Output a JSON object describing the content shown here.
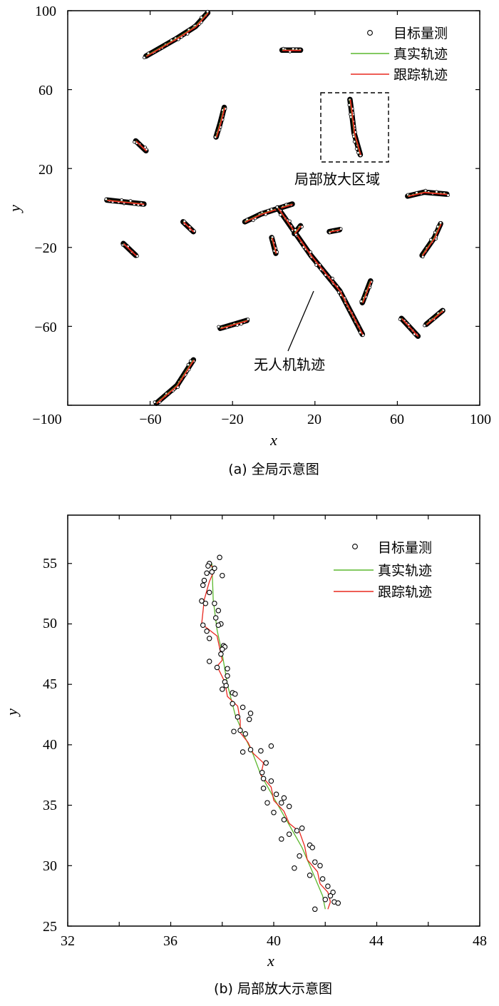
{
  "chart_data": [
    {
      "type": "scatter",
      "xlabel": "x",
      "ylabel": "y",
      "caption": "(a) 全局示意图",
      "xlim": [
        -100,
        100
      ],
      "ylim": [
        -100,
        100
      ],
      "xticks": [
        "−100",
        "−60",
        "−20",
        "20",
        "60",
        "100"
      ],
      "yticks": [
        "100",
        "60",
        "20",
        "−20",
        "−60"
      ],
      "legend": {
        "position": "top-right",
        "items": [
          "目标量测",
          "真实轨迹",
          "跟踪轨迹"
        ]
      },
      "colors": {
        "measurement": "#000000",
        "true": "#5cb82e",
        "tracking": "#e8281f"
      },
      "annotations": [
        "局部放大区域",
        "无人机轨迹"
      ],
      "series": [
        {
          "points": [
            [
              -62,
              77
            ],
            [
              -47,
              86
            ],
            [
              -38,
              92
            ],
            [
              -32,
              99
            ]
          ]
        },
        {
          "points": [
            [
              4,
              80
            ],
            [
              13,
              80
            ]
          ]
        },
        {
          "points": [
            [
              -28,
              36
            ],
            [
              -26,
              43
            ],
            [
              -24,
              51
            ]
          ]
        },
        {
          "points": [
            [
              -67,
              34
            ],
            [
              -62,
              29
            ]
          ]
        },
        {
          "points": [
            [
              37,
              55
            ],
            [
              38,
              47
            ],
            [
              39,
              38
            ],
            [
              42,
              27
            ]
          ]
        },
        {
          "points": [
            [
              -81,
              4
            ],
            [
              -72,
              3
            ],
            [
              -63,
              2
            ]
          ]
        },
        {
          "points": [
            [
              -44,
              -7
            ],
            [
              -39,
              -12
            ]
          ]
        },
        {
          "points": [
            [
              -14,
              -7
            ],
            [
              -6,
              -3
            ],
            [
              9,
              2
            ]
          ]
        },
        {
          "points": [
            [
              2,
              0
            ],
            [
              18,
              -24
            ],
            [
              32,
              -42
            ],
            [
              43,
              -64
            ]
          ]
        },
        {
          "points": [
            [
              10,
              -13
            ],
            [
              13,
              -9
            ]
          ]
        },
        {
          "points": [
            [
              27,
              -12
            ],
            [
              32,
              -11
            ]
          ]
        },
        {
          "points": [
            [
              -1,
              -15
            ],
            [
              1,
              -23
            ]
          ]
        },
        {
          "points": [
            [
              -73,
              -18
            ],
            [
              -67,
              -24
            ]
          ]
        },
        {
          "points": [
            [
              43,
              -48
            ],
            [
              47,
              -37
            ]
          ]
        },
        {
          "points": [
            [
              65,
              6
            ],
            [
              73,
              8
            ],
            [
              84,
              7
            ]
          ]
        },
        {
          "points": [
            [
              72,
              -24
            ],
            [
              78,
              -15
            ],
            [
              81,
              -8
            ]
          ]
        },
        {
          "points": [
            [
              -26,
              -61
            ],
            [
              -13,
              -57
            ]
          ]
        },
        {
          "points": [
            [
              62,
              -56
            ],
            [
              70,
              -65
            ]
          ]
        },
        {
          "points": [
            [
              74,
              -59
            ],
            [
              82,
              -52
            ]
          ]
        },
        {
          "points": [
            [
              -57,
              -99
            ],
            [
              -47,
              -90
            ],
            [
              -39,
              -77
            ]
          ]
        }
      ]
    },
    {
      "type": "line",
      "xlabel": "x",
      "ylabel": "y",
      "caption": "(b) 局部放大示意图",
      "xlim": [
        32,
        48
      ],
      "ylim": [
        25,
        59
      ],
      "xticks": [
        "32",
        "36",
        "40",
        "44",
        "48"
      ],
      "yticks": [
        "25",
        "30",
        "35",
        "40",
        "45",
        "50",
        "55"
      ],
      "legend": {
        "position": "top-right",
        "items": [
          "目标量测",
          "真实轨迹",
          "跟踪轨迹"
        ]
      },
      "colors": {
        "measurement": "#000000",
        "true": "#5cb82e",
        "tracking": "#e8281f"
      },
      "true_track": [
        [
          37.6,
          55.0
        ],
        [
          37.65,
          52.0
        ],
        [
          37.8,
          49.5
        ],
        [
          38.0,
          47.5
        ],
        [
          38.2,
          45.0
        ],
        [
          38.5,
          42.5
        ],
        [
          38.8,
          41.0
        ],
        [
          39.2,
          39.2
        ],
        [
          39.5,
          37.5
        ],
        [
          39.9,
          36.0
        ],
        [
          40.3,
          34.5
        ],
        [
          40.7,
          33.0
        ],
        [
          41.1,
          31.5
        ],
        [
          41.4,
          30.0
        ],
        [
          41.7,
          28.5
        ],
        [
          41.9,
          27.5
        ],
        [
          42.0,
          26.4
        ]
      ],
      "tracking_track": [
        [
          37.5,
          55.0
        ],
        [
          37.7,
          54.5
        ],
        [
          37.5,
          53.5
        ],
        [
          37.3,
          52.0
        ],
        [
          37.2,
          50.0
        ],
        [
          37.8,
          49.0
        ],
        [
          37.9,
          48.0
        ],
        [
          38.0,
          47.0
        ],
        [
          37.8,
          46.5
        ],
        [
          38.1,
          45.2
        ],
        [
          38.2,
          44.0
        ],
        [
          38.6,
          43.2
        ],
        [
          38.7,
          42.0
        ],
        [
          38.7,
          41.0
        ],
        [
          39.0,
          40.2
        ],
        [
          39.2,
          39.3
        ],
        [
          39.6,
          38.5
        ],
        [
          39.5,
          37.5
        ],
        [
          39.9,
          36.5
        ],
        [
          40.0,
          35.4
        ],
        [
          40.4,
          34.5
        ],
        [
          40.6,
          33.5
        ],
        [
          41.0,
          32.8
        ],
        [
          41.2,
          31.6
        ],
        [
          41.3,
          30.5
        ],
        [
          41.7,
          29.5
        ],
        [
          41.8,
          28.5
        ],
        [
          42.1,
          27.8
        ],
        [
          42.2,
          27.0
        ],
        [
          42.1,
          26.4
        ]
      ],
      "measurements": [
        [
          37.9,
          55.5
        ],
        [
          37.5,
          55.0
        ],
        [
          37.45,
          54.8
        ],
        [
          37.7,
          54.6
        ],
        [
          37.6,
          54.3
        ],
        [
          37.4,
          54.2
        ],
        [
          38.0,
          54.0
        ],
        [
          37.3,
          53.6
        ],
        [
          37.25,
          53.2
        ],
        [
          37.5,
          52.6
        ],
        [
          37.2,
          51.9
        ],
        [
          37.35,
          51.7
        ],
        [
          37.7,
          51.7
        ],
        [
          37.85,
          51.1
        ],
        [
          37.75,
          50.5
        ],
        [
          37.25,
          49.9
        ],
        [
          37.95,
          50.0
        ],
        [
          37.85,
          49.9
        ],
        [
          37.4,
          49.4
        ],
        [
          37.5,
          48.8
        ],
        [
          38.05,
          48.2
        ],
        [
          38.1,
          48.1
        ],
        [
          38.0,
          47.9
        ],
        [
          37.95,
          47.5
        ],
        [
          37.5,
          46.9
        ],
        [
          38.2,
          46.3
        ],
        [
          37.8,
          46.4
        ],
        [
          38.2,
          45.7
        ],
        [
          38.1,
          45.2
        ],
        [
          38.15,
          44.9
        ],
        [
          38.4,
          44.3
        ],
        [
          38.5,
          44.2
        ],
        [
          38.0,
          44.6
        ],
        [
          38.4,
          43.4
        ],
        [
          38.8,
          43.1
        ],
        [
          39.1,
          42.6
        ],
        [
          38.6,
          42.3
        ],
        [
          39.05,
          42.1
        ],
        [
          38.7,
          41.2
        ],
        [
          38.45,
          41.1
        ],
        [
          38.9,
          40.9
        ],
        [
          39.9,
          39.9
        ],
        [
          39.5,
          39.5
        ],
        [
          38.8,
          39.4
        ],
        [
          39.1,
          39.6
        ],
        [
          39.7,
          38.5
        ],
        [
          39.55,
          37.7
        ],
        [
          39.6,
          37.2
        ],
        [
          39.9,
          37.0
        ],
        [
          39.6,
          36.4
        ],
        [
          40.1,
          35.9
        ],
        [
          40.4,
          35.6
        ],
        [
          40.3,
          35.2
        ],
        [
          39.75,
          35.2
        ],
        [
          40.6,
          34.9
        ],
        [
          40.0,
          34.4
        ],
        [
          40.4,
          33.8
        ],
        [
          41.1,
          33.1
        ],
        [
          40.9,
          32.9
        ],
        [
          40.6,
          32.6
        ],
        [
          40.3,
          32.2
        ],
        [
          41.4,
          31.7
        ],
        [
          41.5,
          31.5
        ],
        [
          41.0,
          30.8
        ],
        [
          41.6,
          30.3
        ],
        [
          41.8,
          30.0
        ],
        [
          40.8,
          29.8
        ],
        [
          41.4,
          29.2
        ],
        [
          41.9,
          28.9
        ],
        [
          42.1,
          28.3
        ],
        [
          42.3,
          27.8
        ],
        [
          42.2,
          27.5
        ],
        [
          42.0,
          27.2
        ],
        [
          42.35,
          27.0
        ],
        [
          42.5,
          26.9
        ],
        [
          41.6,
          26.4
        ]
      ]
    }
  ]
}
